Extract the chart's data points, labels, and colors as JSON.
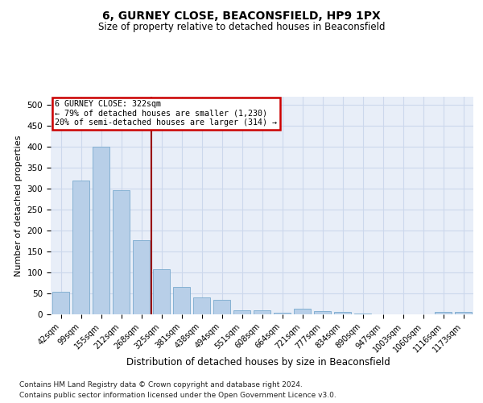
{
  "title": "6, GURNEY CLOSE, BEACONSFIELD, HP9 1PX",
  "subtitle": "Size of property relative to detached houses in Beaconsfield",
  "xlabel": "Distribution of detached houses by size in Beaconsfield",
  "ylabel": "Number of detached properties",
  "footnote1": "Contains HM Land Registry data © Crown copyright and database right 2024.",
  "footnote2": "Contains public sector information licensed under the Open Government Licence v3.0.",
  "categories": [
    "42sqm",
    "99sqm",
    "155sqm",
    "212sqm",
    "268sqm",
    "325sqm",
    "381sqm",
    "438sqm",
    "494sqm",
    "551sqm",
    "608sqm",
    "664sqm",
    "721sqm",
    "777sqm",
    "834sqm",
    "890sqm",
    "947sqm",
    "1003sqm",
    "1060sqm",
    "1116sqm",
    "1173sqm"
  ],
  "values": [
    53,
    320,
    401,
    297,
    178,
    107,
    65,
    40,
    35,
    9,
    9,
    4,
    14,
    8,
    6,
    2,
    0,
    0,
    0,
    5,
    5
  ],
  "bar_color": "#b8cfe8",
  "bar_edge_color": "#7aaace",
  "grid_color": "#ccd8ec",
  "background_color": "#e8eef8",
  "vline_color": "#990000",
  "vline_x": 4.5,
  "annotation_line1": "6 GURNEY CLOSE: 322sqm",
  "annotation_line2": "← 79% of detached houses are smaller (1,230)",
  "annotation_line3": "20% of semi-detached houses are larger (314) →",
  "annotation_border_color": "#cc0000",
  "ylim": [
    0,
    520
  ],
  "yticks": [
    0,
    50,
    100,
    150,
    200,
    250,
    300,
    350,
    400,
    450,
    500
  ],
  "title_fontsize": 10,
  "subtitle_fontsize": 8.5,
  "ylabel_fontsize": 8,
  "xlabel_fontsize": 8.5,
  "tick_fontsize": 7,
  "footnote_fontsize": 6.5
}
